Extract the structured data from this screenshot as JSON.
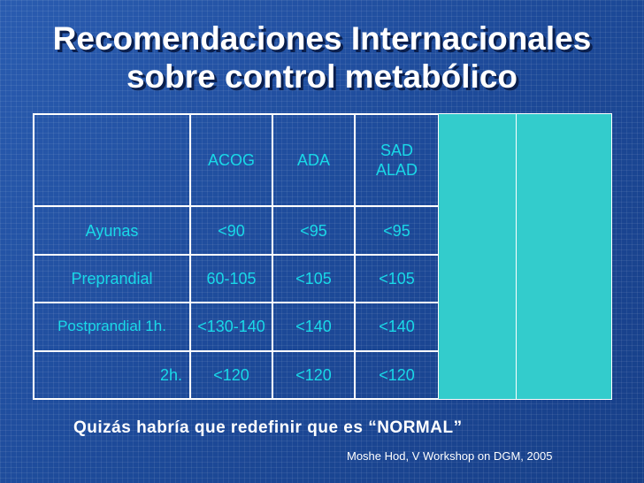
{
  "title": {
    "line1": "Recomendaciones Internacionales",
    "line2": "sobre control metabólico"
  },
  "table": {
    "headers": [
      "",
      "ACOG",
      "ADA",
      "SAD ALAD"
    ],
    "rows": [
      {
        "label": "Ayunas",
        "values": [
          "<90",
          "<95",
          "<95"
        ]
      },
      {
        "label": "Preprandial",
        "values": [
          "60-105",
          "<105",
          "<105"
        ]
      },
      {
        "label": "Postprandial 1h.",
        "values": [
          "<130-140",
          "<140",
          "<140"
        ]
      },
      {
        "label": "2h.",
        "values": [
          "<120",
          "<120",
          "<120"
        ]
      }
    ]
  },
  "footnote": "Quizás habría que redefinir que es “NORMAL”",
  "citation": "Moshe Hod, V Workshop on DGM, 2005",
  "colors": {
    "background": "#1f4fa0",
    "cell_text": "#19d9e8",
    "cyan_box": "#33cccc"
  }
}
